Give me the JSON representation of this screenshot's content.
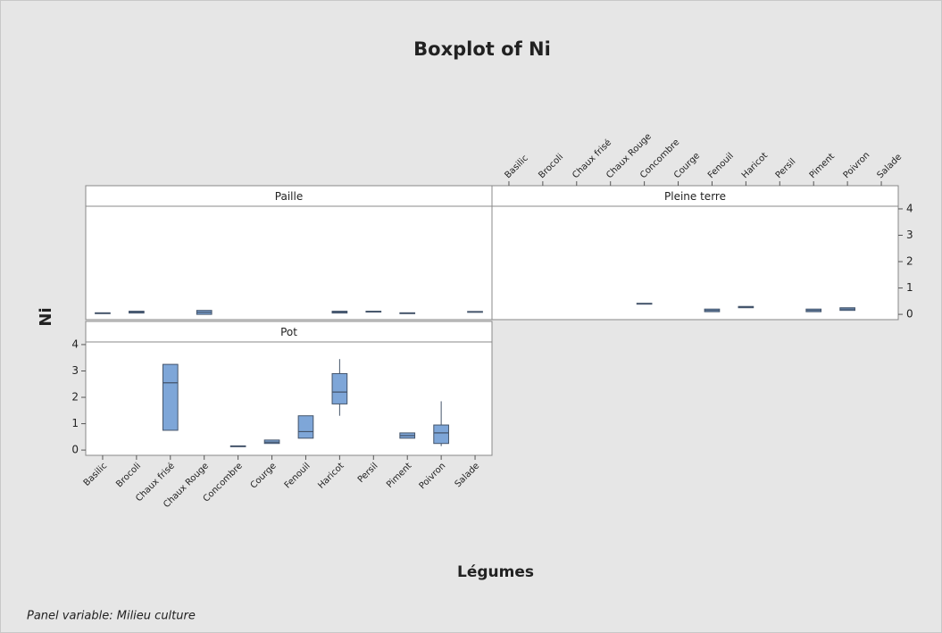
{
  "chart_data": {
    "type": "box",
    "title": "Boxplot of Ni",
    "xlabel": "Légumes",
    "ylabel": "Ni",
    "footnote": "Panel variable: Milieu culture",
    "categories": [
      "Basilic",
      "Brocoli",
      "Chaux frisé",
      "Chaux Rouge",
      "Concombre",
      "Courge",
      "Fenouil",
      "Haricot",
      "Persil",
      "Piment",
      "Poivron",
      "Salade"
    ],
    "ylim": [
      -0.2,
      4.1
    ],
    "yticks": [
      0,
      1,
      2,
      3,
      4
    ],
    "color": "#7ea6d8",
    "edge_color": "#44546a",
    "panels": [
      {
        "name": "Paille",
        "boxes": [
          {
            "min": 0.03,
            "q1": 0.03,
            "median": 0.05,
            "q3": 0.06,
            "max": 0.06
          },
          {
            "min": 0.05,
            "q1": 0.05,
            "median": 0.08,
            "q3": 0.12,
            "max": 0.12
          },
          null,
          {
            "min": 0.0,
            "q1": 0.0,
            "median": 0.08,
            "q3": 0.15,
            "max": 0.15
          },
          null,
          null,
          null,
          {
            "min": 0.05,
            "q1": 0.05,
            "median": 0.08,
            "q3": 0.12,
            "max": 0.12
          },
          {
            "min": 0.1,
            "q1": 0.1,
            "median": 0.1,
            "q3": 0.12,
            "max": 0.12
          },
          {
            "min": 0.04,
            "q1": 0.04,
            "median": 0.05,
            "q3": 0.06,
            "max": 0.06
          },
          null,
          {
            "min": 0.09,
            "q1": 0.09,
            "median": 0.1,
            "q3": 0.11,
            "max": 0.11
          }
        ]
      },
      {
        "name": "Pleine terre",
        "boxes": [
          null,
          null,
          null,
          null,
          {
            "min": 0.4,
            "q1": 0.4,
            "median": 0.4,
            "q3": 0.42,
            "max": 0.42
          },
          null,
          {
            "min": 0.1,
            "q1": 0.1,
            "median": 0.15,
            "q3": 0.2,
            "max": 0.2
          },
          {
            "min": 0.25,
            "q1": 0.25,
            "median": 0.28,
            "q3": 0.3,
            "max": 0.3
          },
          null,
          {
            "min": 0.1,
            "q1": 0.1,
            "median": 0.15,
            "q3": 0.2,
            "max": 0.2
          },
          {
            "min": 0.15,
            "q1": 0.15,
            "median": 0.2,
            "q3": 0.25,
            "max": 0.25
          },
          null
        ]
      },
      {
        "name": "Pot",
        "boxes": [
          null,
          null,
          {
            "min": 0.75,
            "q1": 0.75,
            "median": 2.55,
            "q3": 3.25,
            "max": 3.25
          },
          null,
          {
            "min": 0.13,
            "q1": 0.13,
            "median": 0.15,
            "q3": 0.16,
            "max": 0.16
          },
          {
            "min": 0.25,
            "q1": 0.25,
            "median": 0.3,
            "q3": 0.38,
            "max": 0.38
          },
          {
            "min": 0.45,
            "q1": 0.45,
            "median": 0.7,
            "q3": 1.3,
            "max": 1.3
          },
          {
            "min": 1.3,
            "q1": 1.75,
            "median": 2.2,
            "q3": 2.9,
            "max": 3.45
          },
          null,
          {
            "min": 0.45,
            "q1": 0.45,
            "median": 0.55,
            "q3": 0.65,
            "max": 0.65
          },
          {
            "min": 0.15,
            "q1": 0.25,
            "median": 0.65,
            "q3": 0.95,
            "max": 1.85
          },
          null
        ]
      }
    ]
  }
}
